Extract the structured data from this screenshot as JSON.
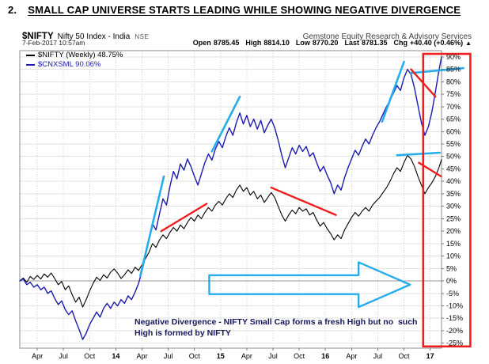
{
  "title": {
    "number": "2.",
    "text": "SMALL CAP UNIVERSE STARTS LEADING WHILE SHOWING NEGATIVE DIVERGENCE"
  },
  "header": {
    "symbol": "$NIFTY",
    "symbol_desc": "Nifty 50 Index - India",
    "exchange": "NSE",
    "provider": "Gemstone Equity Research & Advisory Services",
    "datetime": "7-Feb-2017 10:57am",
    "quote": {
      "items": [
        {
          "label": "Open",
          "value": "8785.45"
        },
        {
          "label": "High",
          "value": "8814.10"
        },
        {
          "label": "Low",
          "value": "8770.20"
        },
        {
          "label": "Last",
          "value": "8781.35"
        },
        {
          "label": "Chg",
          "value": "+40.40 (+0.46%)"
        }
      ],
      "arrow": "▲"
    }
  },
  "legend": [
    {
      "label": "$NIFTY (Weekly) 48.75%",
      "color": "#000000"
    },
    {
      "label": "$CNXSML 90.06%",
      "color": "#1b1bb0"
    }
  ],
  "annotation_text": {
    "line1": "Negative Divergence - NIFTY Small Cap forms a fresh High but no  such",
    "line2": "High is formed by NIFTY",
    "color": "#16165a"
  },
  "chart_data": {
    "type": "line",
    "title": "$NIFTY vs $CNXSML percent change, weekly, Feb-2013 to Feb-2017",
    "x_unit": "months since Feb-2013",
    "xlim": [
      0,
      48.3
    ],
    "ylim": [
      -27,
      92.5
    ],
    "yticks": [
      90,
      85,
      80,
      75,
      70,
      65,
      60,
      55,
      50,
      45,
      40,
      35,
      30,
      25,
      20,
      15,
      10,
      5,
      0,
      -5,
      -10,
      -15,
      -20,
      -25
    ],
    "ytick_suffix": "%",
    "x_ticks": [
      {
        "m": 2,
        "label": "Apr"
      },
      {
        "m": 5,
        "label": "Jul"
      },
      {
        "m": 8,
        "label": "Oct"
      },
      {
        "m": 11,
        "label": "14",
        "year": true
      },
      {
        "m": 14,
        "label": "Apr"
      },
      {
        "m": 17,
        "label": "Jul"
      },
      {
        "m": 20,
        "label": "Oct"
      },
      {
        "m": 23,
        "label": "15",
        "year": true
      },
      {
        "m": 26,
        "label": "Apr"
      },
      {
        "m": 29,
        "label": "Jul"
      },
      {
        "m": 32,
        "label": "Oct"
      },
      {
        "m": 35,
        "label": "16",
        "year": true
      },
      {
        "m": 38,
        "label": "Apr"
      },
      {
        "m": 41,
        "label": "Jul"
      },
      {
        "m": 44,
        "label": "Oct"
      },
      {
        "m": 47,
        "label": "17",
        "year": true
      }
    ],
    "grid": true,
    "legend_position": "top-left",
    "style": {
      "h_grid_color": "#e2e2e2",
      "v_grid_color": "#cfcfcf",
      "zero_line_color": "#9a9a9a",
      "border_color": "#8c8c8c",
      "axis_text_color": "#000000"
    },
    "series": [
      {
        "name": "$NIFTY (Weekly)",
        "id": "nifty-weekly-line",
        "color": "#000000",
        "width": 1.1,
        "last_pct": 48.75,
        "points": [
          [
            0,
            0
          ],
          [
            0.4,
            1.2
          ],
          [
            0.8,
            -0.5
          ],
          [
            1.2,
            1.8
          ],
          [
            1.6,
            0.6
          ],
          [
            2,
            2.2
          ],
          [
            2.4,
            0.8
          ],
          [
            2.8,
            2.8
          ],
          [
            3.2,
            1.5
          ],
          [
            3.6,
            3.2
          ],
          [
            4,
            1
          ],
          [
            4.4,
            -1.5
          ],
          [
            4.8,
            -0.2
          ],
          [
            5.2,
            -3.5
          ],
          [
            5.6,
            -2
          ],
          [
            6,
            -5.5
          ],
          [
            6.4,
            -8.5
          ],
          [
            6.8,
            -6.5
          ],
          [
            7.2,
            -10.5
          ],
          [
            7.6,
            -7.5
          ],
          [
            8,
            -4
          ],
          [
            8.4,
            -1
          ],
          [
            8.8,
            1.5
          ],
          [
            9.2,
            0.2
          ],
          [
            9.6,
            2.5
          ],
          [
            10,
            1.2
          ],
          [
            10.4,
            3.5
          ],
          [
            10.8,
            4.8
          ],
          [
            11.2,
            3.2
          ],
          [
            11.6,
            1
          ],
          [
            12,
            2.5
          ],
          [
            12.4,
            4.5
          ],
          [
            12.8,
            3
          ],
          [
            13.2,
            5.5
          ],
          [
            13.6,
            4.2
          ],
          [
            14,
            6.5
          ],
          [
            14.4,
            9
          ],
          [
            14.8,
            11.5
          ],
          [
            15.2,
            15
          ],
          [
            15.6,
            13.5
          ],
          [
            16,
            16.5
          ],
          [
            16.4,
            18.5
          ],
          [
            16.8,
            17
          ],
          [
            17.2,
            19.5
          ],
          [
            17.6,
            21.5
          ],
          [
            18,
            20
          ],
          [
            18.4,
            22.5
          ],
          [
            18.8,
            21
          ],
          [
            19.2,
            23.5
          ],
          [
            19.6,
            25.5
          ],
          [
            20,
            24
          ],
          [
            20.4,
            26.5
          ],
          [
            20.8,
            25
          ],
          [
            21.2,
            27.5
          ],
          [
            21.6,
            29.5
          ],
          [
            22,
            28
          ],
          [
            22.4,
            30.5
          ],
          [
            22.8,
            32
          ],
          [
            23.2,
            30.5
          ],
          [
            23.6,
            33
          ],
          [
            24,
            35
          ],
          [
            24.4,
            33.5
          ],
          [
            24.8,
            36.5
          ],
          [
            25.2,
            38.5
          ],
          [
            25.6,
            36
          ],
          [
            26,
            37.5
          ],
          [
            26.4,
            34.5
          ],
          [
            26.8,
            36
          ],
          [
            27.2,
            33
          ],
          [
            27.6,
            34.5
          ],
          [
            28,
            31.5
          ],
          [
            28.4,
            33.5
          ],
          [
            28.8,
            35.5
          ],
          [
            29.2,
            33.5
          ],
          [
            29.6,
            30
          ],
          [
            30,
            26.5
          ],
          [
            30.4,
            24
          ],
          [
            30.8,
            26.5
          ],
          [
            31.2,
            28.5
          ],
          [
            31.6,
            27
          ],
          [
            32,
            29.5
          ],
          [
            32.4,
            28
          ],
          [
            32.8,
            29
          ],
          [
            33.2,
            26.5
          ],
          [
            33.6,
            27.5
          ],
          [
            34,
            24.5
          ],
          [
            34.4,
            22
          ],
          [
            34.8,
            23.5
          ],
          [
            35.2,
            21
          ],
          [
            35.6,
            19
          ],
          [
            36,
            16.5
          ],
          [
            36.4,
            18.5
          ],
          [
            36.8,
            17
          ],
          [
            37.2,
            20.5
          ],
          [
            37.6,
            23
          ],
          [
            38,
            25.5
          ],
          [
            38.4,
            27.5
          ],
          [
            38.8,
            26
          ],
          [
            39.2,
            28
          ],
          [
            39.6,
            29.5
          ],
          [
            40,
            28
          ],
          [
            40.4,
            30.5
          ],
          [
            40.8,
            32
          ],
          [
            41.2,
            33.5
          ],
          [
            41.6,
            35.5
          ],
          [
            42,
            37.5
          ],
          [
            42.4,
            40
          ],
          [
            42.8,
            43
          ],
          [
            43.2,
            45.5
          ],
          [
            43.6,
            44
          ],
          [
            44,
            47.5
          ],
          [
            44.4,
            50.5
          ],
          [
            44.8,
            49
          ],
          [
            45.2,
            46
          ],
          [
            45.6,
            42
          ],
          [
            46,
            38.5
          ],
          [
            46.4,
            35
          ],
          [
            46.8,
            37.5
          ],
          [
            47.2,
            39.5
          ],
          [
            47.6,
            42
          ],
          [
            48,
            45.5
          ],
          [
            48.3,
            48.75
          ]
        ]
      },
      {
        "name": "$CNXSML",
        "id": "cnxsml-line",
        "color": "#1b1bb0",
        "width": 1.4,
        "last_pct": 90.06,
        "points": [
          [
            0,
            0
          ],
          [
            0.4,
            0.8
          ],
          [
            0.8,
            -1.5
          ],
          [
            1.2,
            -0.5
          ],
          [
            1.6,
            -2.5
          ],
          [
            2,
            -1.5
          ],
          [
            2.4,
            -3.5
          ],
          [
            2.8,
            -2.5
          ],
          [
            3.2,
            -5
          ],
          [
            3.6,
            -4
          ],
          [
            4,
            -7
          ],
          [
            4.4,
            -9.5
          ],
          [
            4.8,
            -8
          ],
          [
            5.2,
            -11.5
          ],
          [
            5.6,
            -13.5
          ],
          [
            6,
            -12
          ],
          [
            6.4,
            -16
          ],
          [
            6.8,
            -19.5
          ],
          [
            7.2,
            -23.5
          ],
          [
            7.6,
            -21
          ],
          [
            8,
            -17.5
          ],
          [
            8.4,
            -15
          ],
          [
            8.8,
            -12.5
          ],
          [
            9.2,
            -14.5
          ],
          [
            9.6,
            -11
          ],
          [
            10,
            -9
          ],
          [
            10.4,
            -11
          ],
          [
            10.8,
            -8.5
          ],
          [
            11.2,
            -10
          ],
          [
            11.6,
            -7.5
          ],
          [
            12,
            -9
          ],
          [
            12.4,
            -6
          ],
          [
            12.8,
            -7.5
          ],
          [
            13.2,
            -4.5
          ],
          [
            13.6,
            -1
          ],
          [
            14,
            4
          ],
          [
            14.4,
            10
          ],
          [
            14.8,
            17
          ],
          [
            15.2,
            23
          ],
          [
            15.6,
            20.5
          ],
          [
            16,
            27
          ],
          [
            16.4,
            33
          ],
          [
            16.8,
            30.5
          ],
          [
            17.2,
            38
          ],
          [
            17.6,
            44
          ],
          [
            18,
            41
          ],
          [
            18.4,
            47
          ],
          [
            18.8,
            44.5
          ],
          [
            19.2,
            49
          ],
          [
            19.6,
            46
          ],
          [
            20,
            42
          ],
          [
            20.4,
            38.5
          ],
          [
            20.8,
            43
          ],
          [
            21.2,
            47.5
          ],
          [
            21.6,
            51
          ],
          [
            22,
            48.5
          ],
          [
            22.4,
            53
          ],
          [
            22.8,
            56
          ],
          [
            23.2,
            53.5
          ],
          [
            23.6,
            58
          ],
          [
            24,
            61.5
          ],
          [
            24.4,
            58.5
          ],
          [
            24.8,
            63.5
          ],
          [
            25.2,
            67.5
          ],
          [
            25.6,
            63
          ],
          [
            26,
            66.5
          ],
          [
            26.4,
            62
          ],
          [
            26.8,
            65
          ],
          [
            27.2,
            61
          ],
          [
            27.6,
            64.5
          ],
          [
            28,
            59.5
          ],
          [
            28.4,
            62.5
          ],
          [
            28.8,
            65
          ],
          [
            29.2,
            61.5
          ],
          [
            29.6,
            56.5
          ],
          [
            30,
            50.5
          ],
          [
            30.4,
            45.5
          ],
          [
            30.8,
            49.5
          ],
          [
            31.2,
            53.5
          ],
          [
            31.6,
            51
          ],
          [
            32,
            54.5
          ],
          [
            32.4,
            52
          ],
          [
            32.8,
            54
          ],
          [
            33.2,
            50
          ],
          [
            33.6,
            51.5
          ],
          [
            34,
            47.5
          ],
          [
            34.4,
            44
          ],
          [
            34.8,
            46
          ],
          [
            35.2,
            42.5
          ],
          [
            35.6,
            39.5
          ],
          [
            36,
            35
          ],
          [
            36.4,
            38.5
          ],
          [
            36.8,
            36.5
          ],
          [
            37.2,
            41.5
          ],
          [
            37.6,
            45.5
          ],
          [
            38,
            49
          ],
          [
            38.4,
            52.5
          ],
          [
            38.8,
            50.5
          ],
          [
            39.2,
            54
          ],
          [
            39.6,
            57
          ],
          [
            40,
            55
          ],
          [
            40.4,
            58.5
          ],
          [
            40.8,
            61.5
          ],
          [
            41.2,
            64
          ],
          [
            41.6,
            67
          ],
          [
            42,
            70
          ],
          [
            42.4,
            72.5
          ],
          [
            42.8,
            75.5
          ],
          [
            43.2,
            78.5
          ],
          [
            43.6,
            76.5
          ],
          [
            44,
            81.5
          ],
          [
            44.4,
            85
          ],
          [
            44.8,
            83
          ],
          [
            45.2,
            77.5
          ],
          [
            45.6,
            70.5
          ],
          [
            46,
            63.5
          ],
          [
            46.4,
            58.5
          ],
          [
            46.8,
            62
          ],
          [
            47.2,
            68
          ],
          [
            47.6,
            76
          ],
          [
            48,
            84.5
          ],
          [
            48.3,
            90.06
          ]
        ]
      }
    ],
    "annotations": {
      "cyan_color": "#25acec",
      "red_color": "#ef1d1d",
      "cyan_trendlines": [
        [
          13.8,
          2,
          16.5,
          42
        ],
        [
          22,
          52,
          25.2,
          74
        ],
        [
          41.5,
          64,
          44,
          88
        ],
        [
          43.2,
          50.5,
          48.1,
          51.5
        ],
        [
          44.8,
          83.5,
          50.8,
          85.5
        ]
      ],
      "red_trendlines": [
        [
          16.2,
          20,
          21.4,
          31
        ],
        [
          28.8,
          37.5,
          36.2,
          26.5
        ],
        [
          44.8,
          85,
          47.6,
          74
        ],
        [
          45.7,
          47.5,
          48.25,
          42
        ]
      ],
      "highlight_box": {
        "x1": 46.2,
        "x2": 51.6,
        "y1": -26.3,
        "y2": 91.2
      },
      "arrow": {
        "x1": 21.7,
        "x_head": 38.8,
        "x2": 44.7,
        "y": -1.5,
        "shaft_half": 3.8,
        "head_half": 9
      }
    }
  }
}
